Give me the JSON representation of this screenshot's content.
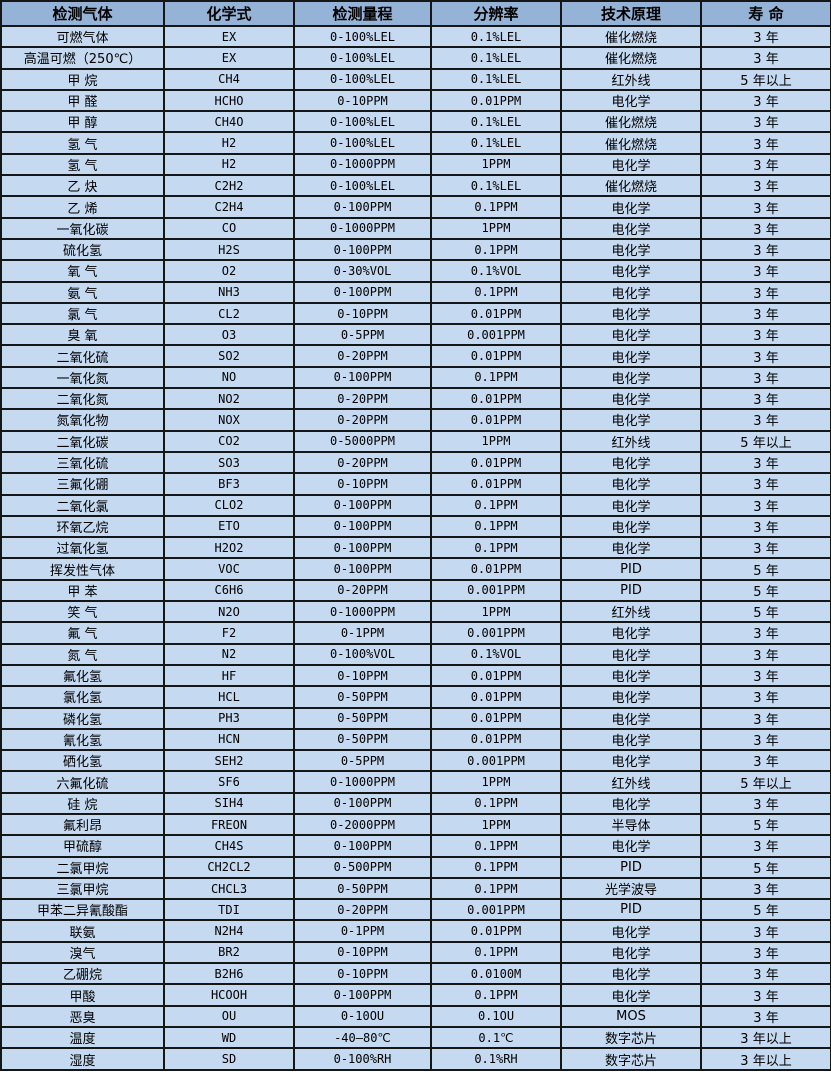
{
  "colors": {
    "header_bg": "#95B3D7",
    "row_bg": "#C5D9F1",
    "border": "#161616",
    "text": "#000000"
  },
  "table": {
    "headers": [
      "检测气体",
      "化学式",
      "检测量程",
      "分辨率",
      "技术原理",
      "寿 命"
    ],
    "rows": [
      [
        "可燃气体",
        "EX",
        "0-100%LEL",
        "0.1%LEL",
        "催化燃烧",
        "3 年"
      ],
      [
        "高温可燃（250℃）",
        "EX",
        "0-100%LEL",
        "0.1%LEL",
        "催化燃烧",
        "3 年"
      ],
      [
        "甲 烷",
        "CH4",
        "0-100%LEL",
        "0.1%LEL",
        "红外线",
        "5 年以上"
      ],
      [
        "甲 醛",
        "HCHO",
        "0-10PPM",
        "0.01PPM",
        "电化学",
        "3 年"
      ],
      [
        "甲 醇",
        "CH4O",
        "0-100%LEL",
        "0.1%LEL",
        "催化燃烧",
        "3 年"
      ],
      [
        "氢 气",
        "H2",
        "0-100%LEL",
        "0.1%LEL",
        "催化燃烧",
        "3 年"
      ],
      [
        "氢 气",
        "H2",
        "0-1000PPM",
        "1PPM",
        "电化学",
        "3 年"
      ],
      [
        "乙 炔",
        "C2H2",
        "0-100%LEL",
        "0.1%LEL",
        "催化燃烧",
        "3 年"
      ],
      [
        "乙 烯",
        "C2H4",
        "0-100PPM",
        "0.1PPM",
        "电化学",
        "3 年"
      ],
      [
        "一氧化碳",
        "CO",
        "0-1000PPM",
        "1PPM",
        "电化学",
        "3 年"
      ],
      [
        "硫化氢",
        "H2S",
        "0-100PPM",
        "0.1PPM",
        "电化学",
        "3 年"
      ],
      [
        "氧 气",
        "O2",
        "0-30%VOL",
        "0.1%VOL",
        "电化学",
        "3 年"
      ],
      [
        "氨 气",
        "NH3",
        "0-100PPM",
        "0.1PPM",
        "电化学",
        "3 年"
      ],
      [
        "氯 气",
        "CL2",
        "0-10PPM",
        "0.01PPM",
        "电化学",
        "3 年"
      ],
      [
        "臭 氧",
        "O3",
        "0-5PPM",
        "0.001PPM",
        "电化学",
        "3 年"
      ],
      [
        "二氧化硫",
        "SO2",
        "0-20PPM",
        "0.01PPM",
        "电化学",
        "3 年"
      ],
      [
        "一氧化氮",
        "NO",
        "0-100PPM",
        "0.1PPM",
        "电化学",
        "3 年"
      ],
      [
        "二氧化氮",
        "NO2",
        "0-20PPM",
        "0.01PPM",
        "电化学",
        "3 年"
      ],
      [
        "氮氧化物",
        "NOX",
        "0-20PPM",
        "0.01PPM",
        "电化学",
        "3 年"
      ],
      [
        "二氧化碳",
        "CO2",
        "0-5000PPM",
        "1PPM",
        "红外线",
        "5 年以上"
      ],
      [
        "三氧化硫",
        "SO3",
        "0-20PPM",
        "0.01PPM",
        "电化学",
        "3 年"
      ],
      [
        "三氟化硼",
        "BF3",
        "0-10PPM",
        "0.01PPM",
        "电化学",
        "3 年"
      ],
      [
        "二氧化氯",
        "CLO2",
        "0-100PPM",
        "0.1PPM",
        "电化学",
        "3 年"
      ],
      [
        "环氧乙烷",
        "ETO",
        "0-100PPM",
        "0.1PPM",
        "电化学",
        "3 年"
      ],
      [
        "过氧化氢",
        "H2O2",
        "0-100PPM",
        "0.1PPM",
        "电化学",
        "3 年"
      ],
      [
        "挥发性气体",
        "VOC",
        "0-100PPM",
        "0.01PPM",
        "PID",
        "5 年"
      ],
      [
        "甲 苯",
        "C6H6",
        "0-20PPM",
        "0.001PPM",
        "PID",
        "5 年"
      ],
      [
        "笑 气",
        "N2O",
        "0-1000PPM",
        "1PPM",
        "红外线",
        "5 年"
      ],
      [
        "氟 气",
        "F2",
        "0-1PPM",
        "0.001PPM",
        "电化学",
        "3 年"
      ],
      [
        "氮 气",
        "N2",
        "0-100%VOL",
        "0.1%VOL",
        "电化学",
        "3 年"
      ],
      [
        "氟化氢",
        "HF",
        "0-10PPM",
        "0.01PPM",
        "电化学",
        "3 年"
      ],
      [
        "氯化氢",
        "HCL",
        "0-50PPM",
        "0.01PPM",
        "电化学",
        "3 年"
      ],
      [
        "磷化氢",
        "PH3",
        "0-50PPM",
        "0.01PPM",
        "电化学",
        "3 年"
      ],
      [
        "氰化氢",
        "HCN",
        "0-50PPM",
        "0.01PPM",
        "电化学",
        "3 年"
      ],
      [
        "硒化氢",
        "SEH2",
        "0-5PPM",
        "0.001PPM",
        "电化学",
        "3 年"
      ],
      [
        "六氟化硫",
        "SF6",
        "0-1000PPM",
        "1PPM",
        "红外线",
        "5 年以上"
      ],
      [
        "硅 烷",
        "SIH4",
        "0-100PPM",
        "0.1PPM",
        "电化学",
        "3 年"
      ],
      [
        "氟利昂",
        "FREON",
        "0-2000PPM",
        "1PPM",
        "半导体",
        "5 年"
      ],
      [
        "甲硫醇",
        "CH4S",
        "0-100PPM",
        "0.1PPM",
        "电化学",
        "3 年"
      ],
      [
        "二氯甲烷",
        "CH2CL2",
        "0-500PPM",
        "0.1PPM",
        "PID",
        "5 年"
      ],
      [
        "三氯甲烷",
        "CHCL3",
        "0-50PPM",
        "0.1PPM",
        "光学波导",
        "3 年"
      ],
      [
        "甲苯二异氰酸酯",
        "TDI",
        "0-20PPM",
        "0.001PPM",
        "PID",
        "5 年"
      ],
      [
        "联氨",
        "N2H4",
        "0-1PPM",
        "0.01PPM",
        "电化学",
        "3 年"
      ],
      [
        "溴气",
        "BR2",
        "0-10PPM",
        "0.1PPM",
        "电化学",
        "3 年"
      ],
      [
        "乙硼烷",
        "B2H6",
        "0-10PPM",
        "0.0100M",
        "电化学",
        "3 年"
      ],
      [
        "甲酸",
        "HCOOH",
        "0-100PPM",
        "0.1PPM",
        "电化学",
        "3 年"
      ],
      [
        "恶臭",
        "OU",
        "0-10OU",
        "0.1OU",
        "MOS",
        "3 年"
      ],
      [
        "温度",
        "WD",
        "-40—80℃",
        "0.1℃",
        "数字芯片",
        "3 年以上"
      ],
      [
        "湿度",
        "SD",
        "0-100%RH",
        "0.1%RH",
        "数字芯片",
        "3 年以上"
      ]
    ],
    "column_keys": [
      "gas-name",
      "chemical-formula",
      "detection-range",
      "resolution",
      "technology",
      "lifespan"
    ]
  }
}
